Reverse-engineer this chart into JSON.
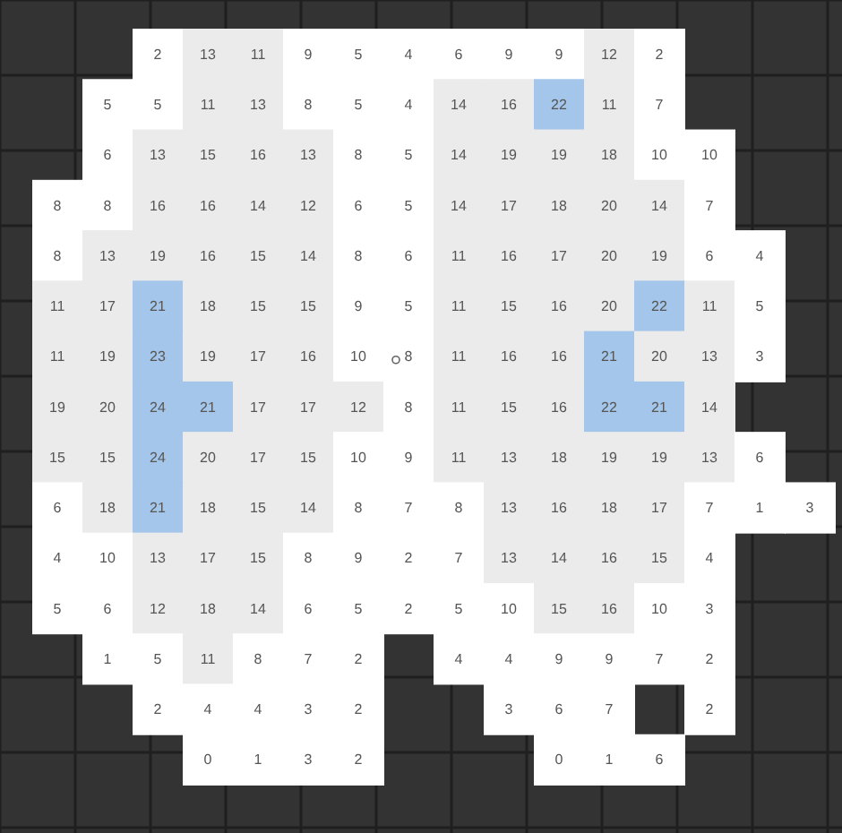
{
  "chart_data": {
    "type": "heatmap",
    "data_labels": true,
    "categories": [
      null,
      null,
      null,
      null,
      null,
      null,
      null,
      null,
      null,
      null,
      null,
      null,
      null,
      null,
      null,
      null
    ],
    "y_categories": [
      null,
      null,
      null,
      null,
      null,
      null,
      null,
      null,
      null,
      null,
      null,
      null,
      null,
      null,
      null
    ],
    "cells": [
      [
        null,
        null,
        2,
        13,
        11,
        9,
        5,
        4,
        6,
        9,
        9,
        12,
        2,
        null,
        null,
        null
      ],
      [
        null,
        5,
        5,
        11,
        13,
        8,
        5,
        4,
        14,
        16,
        22,
        11,
        7,
        null,
        null,
        null
      ],
      [
        null,
        6,
        13,
        15,
        16,
        13,
        8,
        5,
        14,
        19,
        19,
        18,
        10,
        10,
        null,
        null
      ],
      [
        8,
        8,
        16,
        16,
        14,
        12,
        6,
        5,
        14,
        17,
        18,
        20,
        14,
        7,
        null,
        null
      ],
      [
        8,
        13,
        19,
        16,
        15,
        14,
        8,
        6,
        11,
        16,
        17,
        20,
        19,
        6,
        4,
        null
      ],
      [
        11,
        17,
        21,
        18,
        15,
        15,
        9,
        5,
        11,
        15,
        16,
        20,
        22,
        11,
        5,
        null
      ],
      [
        11,
        19,
        23,
        19,
        17,
        16,
        10,
        8,
        11,
        16,
        16,
        21,
        20,
        13,
        3,
        null
      ],
      [
        19,
        20,
        24,
        21,
        17,
        17,
        12,
        8,
        11,
        15,
        16,
        22,
        21,
        14,
        null,
        null
      ],
      [
        15,
        15,
        24,
        20,
        17,
        15,
        10,
        9,
        11,
        13,
        18,
        19,
        19,
        13,
        6,
        null
      ],
      [
        6,
        18,
        21,
        18,
        15,
        14,
        8,
        7,
        8,
        13,
        16,
        18,
        17,
        7,
        1,
        3
      ],
      [
        4,
        10,
        13,
        17,
        15,
        8,
        9,
        2,
        7,
        13,
        14,
        16,
        15,
        4,
        null,
        null
      ],
      [
        5,
        6,
        12,
        18,
        14,
        6,
        5,
        2,
        5,
        10,
        15,
        16,
        10,
        3,
        null,
        null
      ],
      [
        null,
        1,
        5,
        11,
        8,
        7,
        2,
        null,
        4,
        4,
        9,
        9,
        7,
        2,
        null,
        null
      ],
      [
        null,
        null,
        2,
        4,
        4,
        3,
        2,
        null,
        null,
        3,
        6,
        7,
        null,
        2,
        null,
        null
      ],
      [
        null,
        null,
        null,
        0,
        1,
        3,
        2,
        null,
        null,
        null,
        0,
        1,
        6,
        null,
        null,
        null
      ]
    ]
  }
}
